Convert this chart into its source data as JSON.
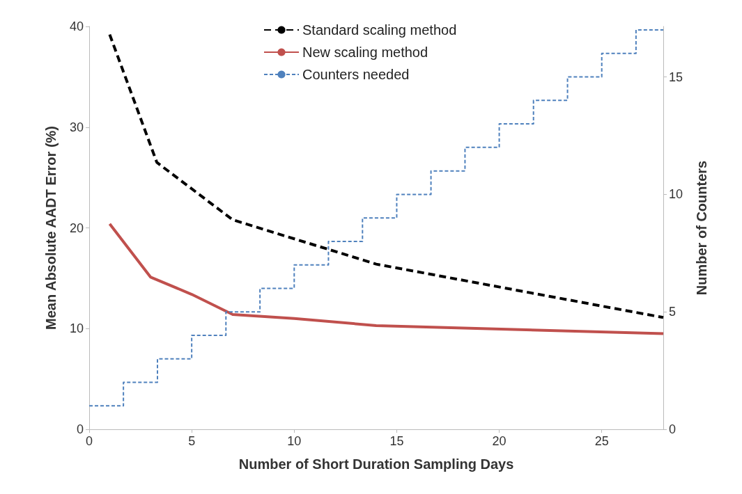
{
  "chart_data": {
    "type": "line",
    "xlabel": "Number of Short Duration Sampling Days",
    "ylabel": "Mean Absolute AADT Error (%)",
    "y2label": "Number of Counters",
    "xlim": [
      0,
      28
    ],
    "xticks": [
      0,
      5,
      10,
      15,
      20,
      25
    ],
    "ylim": [
      0,
      40
    ],
    "yticks": [
      0,
      10,
      20,
      30,
      40
    ],
    "y2lim": [
      0,
      17.15
    ],
    "y2ticks": [
      0,
      5,
      10,
      15
    ],
    "grid": false,
    "legend": "top",
    "marker": "none",
    "series": [
      {
        "name": "Standard scaling method",
        "color": "#000000",
        "line_style": "dashed",
        "x": [
          1,
          3.3,
          7,
          14,
          28
        ],
        "values": [
          39.2,
          26.5,
          20.8,
          16.4,
          11.1
        ]
      },
      {
        "name": "New scaling method",
        "color": "#c0504d",
        "line_style": "solid",
        "x": [
          1,
          3,
          5,
          7,
          10,
          14,
          21,
          28
        ],
        "values": [
          20.4,
          15.1,
          13.4,
          11.4,
          11.0,
          10.3,
          9.9,
          9.5
        ]
      },
      {
        "name": "Counters needed",
        "type": "step",
        "axis": "y2",
        "color": "#4f81bd",
        "line_style": "dashed",
        "x": [
          0,
          1.67,
          3.33,
          5,
          6.67,
          8.33,
          10,
          11.67,
          13.33,
          15,
          16.67,
          18.33,
          20,
          21.67,
          23.33,
          25,
          26.67,
          28
        ],
        "values": [
          1,
          2,
          3,
          4,
          5,
          6,
          7,
          8,
          9,
          10,
          11,
          12,
          13,
          14,
          15,
          16,
          17,
          17
        ]
      }
    ]
  }
}
